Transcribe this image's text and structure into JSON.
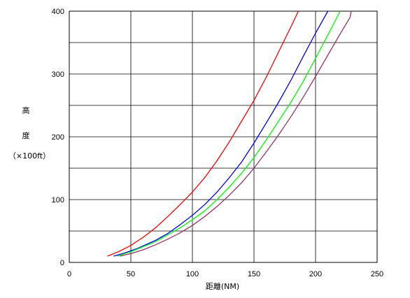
{
  "chart_data": {
    "type": "line",
    "xlabel": "距離(NM)",
    "ylabel_lines": [
      "高",
      "度",
      "（×100ft）"
    ],
    "xlim": [
      0,
      250
    ],
    "ylim": [
      0,
      400
    ],
    "x_ticks": [
      "0",
      "50",
      "100",
      "150",
      "200",
      "250"
    ],
    "y_ticks": [
      "0",
      "100",
      "200",
      "300",
      "400"
    ],
    "grid": true,
    "series": [
      {
        "color": "#ff0000",
        "points": [
          [
            31,
            10
          ],
          [
            40,
            17
          ],
          [
            50,
            27
          ],
          [
            60,
            40
          ],
          [
            70,
            55
          ],
          [
            80,
            73
          ],
          [
            90,
            92
          ],
          [
            100,
            112
          ],
          [
            110,
            135
          ],
          [
            120,
            162
          ],
          [
            130,
            192
          ],
          [
            140,
            225
          ],
          [
            150,
            258
          ],
          [
            160,
            295
          ],
          [
            170,
            335
          ],
          [
            180,
            375
          ],
          [
            186,
            400
          ]
        ]
      },
      {
        "color": "#0000ff",
        "points": [
          [
            36,
            10
          ],
          [
            45,
            15
          ],
          [
            55,
            22
          ],
          [
            70,
            35
          ],
          [
            80,
            46
          ],
          [
            90,
            60
          ],
          [
            100,
            75
          ],
          [
            110,
            92
          ],
          [
            120,
            112
          ],
          [
            130,
            135
          ],
          [
            140,
            160
          ],
          [
            150,
            190
          ],
          [
            160,
            222
          ],
          [
            170,
            255
          ],
          [
            180,
            290
          ],
          [
            190,
            328
          ],
          [
            200,
            365
          ],
          [
            210,
            400
          ]
        ]
      },
      {
        "color": "#00ff00",
        "points": [
          [
            39,
            10
          ],
          [
            50,
            17
          ],
          [
            60,
            25
          ],
          [
            70,
            33
          ],
          [
            80,
            44
          ],
          [
            90,
            55
          ],
          [
            100,
            68
          ],
          [
            110,
            82
          ],
          [
            120,
            100
          ],
          [
            130,
            120
          ],
          [
            140,
            142
          ],
          [
            150,
            167
          ],
          [
            160,
            195
          ],
          [
            170,
            225
          ],
          [
            180,
            255
          ],
          [
            190,
            288
          ],
          [
            200,
            325
          ],
          [
            210,
            362
          ],
          [
            220,
            400
          ]
        ]
      },
      {
        "color": "#993366",
        "points": [
          [
            41,
            10
          ],
          [
            50,
            14
          ],
          [
            60,
            20
          ],
          [
            70,
            28
          ],
          [
            80,
            37
          ],
          [
            90,
            47
          ],
          [
            100,
            59
          ],
          [
            110,
            73
          ],
          [
            120,
            89
          ],
          [
            130,
            107
          ],
          [
            140,
            127
          ],
          [
            150,
            150
          ],
          [
            160,
            176
          ],
          [
            170,
            203
          ],
          [
            180,
            232
          ],
          [
            190,
            263
          ],
          [
            200,
            296
          ],
          [
            210,
            330
          ],
          [
            220,
            364
          ],
          [
            228,
            390
          ],
          [
            229,
            400
          ]
        ]
      }
    ]
  }
}
